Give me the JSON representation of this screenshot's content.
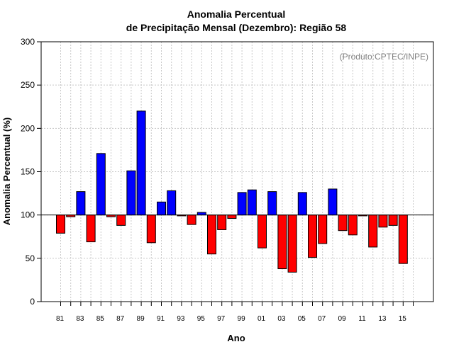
{
  "chart_data": {
    "type": "bar",
    "title": "Anomalia Percentual",
    "subtitle": "de Precipitação Mensal (Dezembro): Região 58",
    "xlabel": "Ano",
    "ylabel": "Anomalia Percentual (%)",
    "credit": "(Produto:CPTEC/INPE)",
    "ylim": [
      0,
      300
    ],
    "yticks": [
      0,
      50,
      100,
      150,
      200,
      250,
      300
    ],
    "baseline": 100,
    "grid": true,
    "colors": {
      "above": "#0000ff",
      "below": "#ff0000"
    },
    "categories": [
      "81",
      "82",
      "83",
      "84",
      "85",
      "86",
      "87",
      "88",
      "89",
      "90",
      "91",
      "92",
      "93",
      "94",
      "95",
      "96",
      "97",
      "98",
      "99",
      "00",
      "01",
      "02",
      "03",
      "04",
      "05",
      "06",
      "07",
      "08",
      "09",
      "10",
      "11",
      "12",
      "13",
      "14",
      "15"
    ],
    "xtick_labels": [
      "81",
      "83",
      "85",
      "87",
      "89",
      "91",
      "93",
      "95",
      "97",
      "99",
      "01",
      "03",
      "05",
      "07",
      "09",
      "11",
      "13",
      "15"
    ],
    "values": [
      79,
      98,
      127,
      69,
      171,
      98,
      88,
      151,
      220,
      68,
      115,
      128,
      99,
      89,
      103,
      55,
      83,
      96,
      126,
      129,
      62,
      127,
      38,
      34,
      126,
      51,
      67,
      130,
      82,
      77,
      99,
      63,
      86,
      88,
      44
    ]
  }
}
